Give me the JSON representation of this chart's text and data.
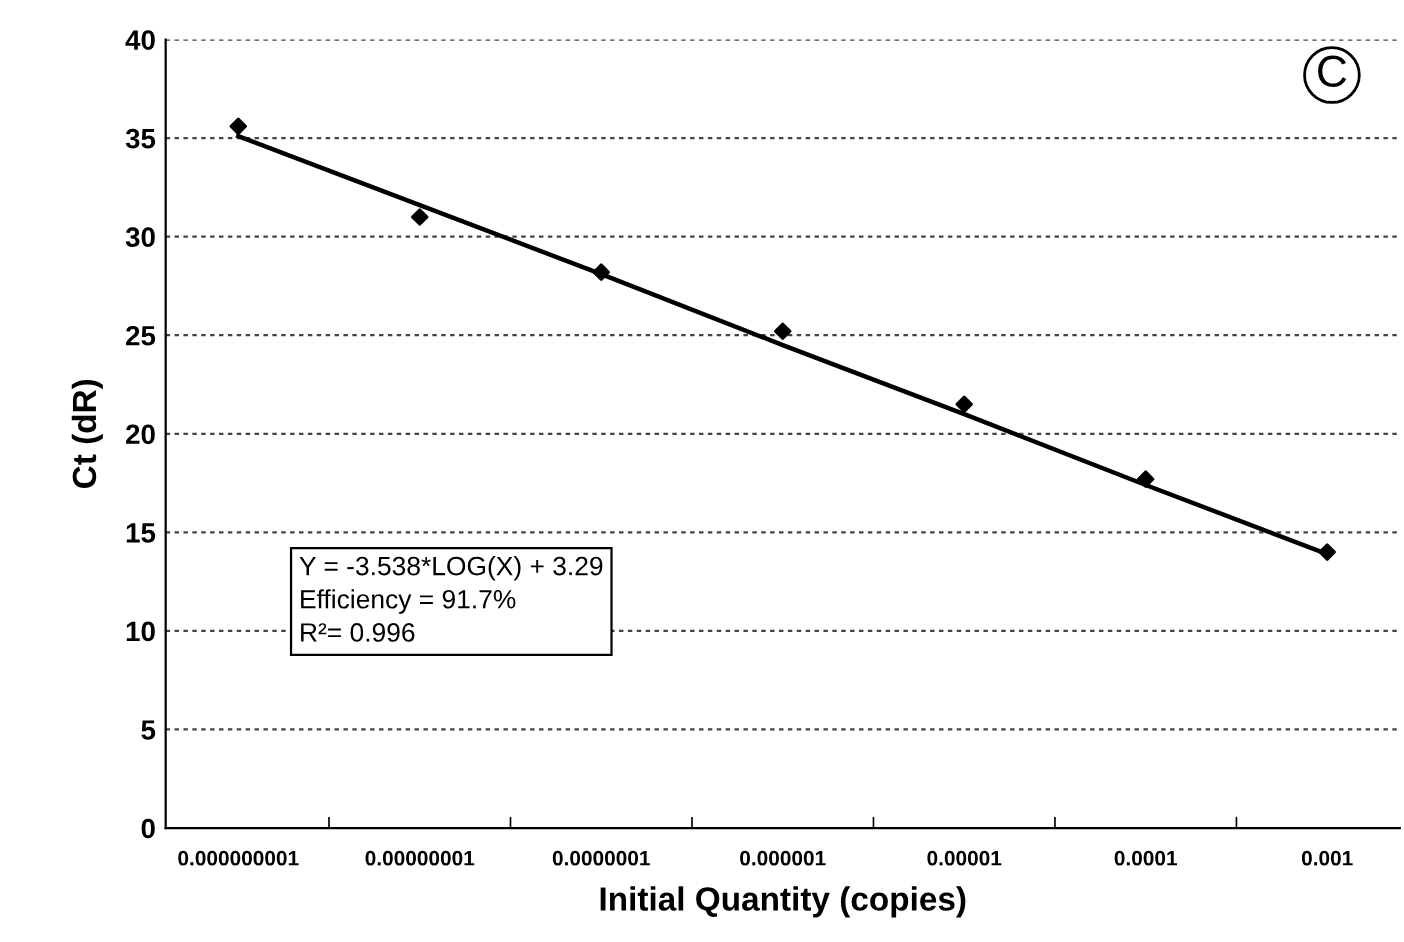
{
  "chart_data": {
    "type": "scatter",
    "xlabel": "Initial Quantity (copies)",
    "ylabel": "Ct (dR)",
    "categories": [
      "0.000000001",
      "0.00000001",
      "0.0000001",
      "0.000001",
      "0.00001",
      "0.0001",
      "0.001"
    ],
    "series": [
      {
        "color": "#000000",
        "marker": "diamond",
        "values": [
          35.6,
          31.0,
          28.2,
          25.2,
          21.5,
          17.7,
          14.0
        ]
      },
      {
        "type": "line",
        "color": "#000000",
        "marker": "none",
        "line_style": "solid",
        "values": [
          35.1,
          31.6,
          28.1,
          24.5,
          21.0,
          17.4,
          13.9
        ]
      }
    ],
    "ylim": [
      0,
      40
    ],
    "yticks": [
      0,
      5,
      10,
      15,
      20,
      25,
      30,
      35,
      40
    ],
    "grid": "y",
    "legend": false,
    "annotations": [
      "C",
      "Y = -3.538*LOG(X) + 3.29\nEfficiency = 91.7%\nR²= 0.996"
    ]
  }
}
